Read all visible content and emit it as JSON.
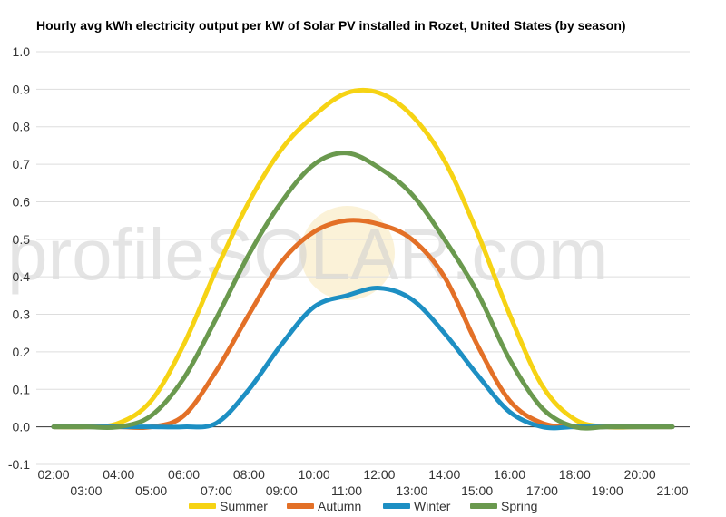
{
  "watermark": {
    "text": "profileSOLAR.com"
  },
  "chart_data": {
    "type": "line",
    "title": "Hourly avg kWh electricity output per kW of Solar PV installed in Rozet, United States (by season)",
    "xlabel": "",
    "ylabel": "",
    "ylim": [
      -0.1,
      1.0
    ],
    "yticks": [
      "-0.1",
      "0.0",
      "0.1",
      "0.2",
      "0.3",
      "0.4",
      "0.5",
      "0.6",
      "0.7",
      "0.8",
      "0.9",
      "1.0"
    ],
    "xticks_upper": [
      "02:00",
      "04:00",
      "06:00",
      "08:00",
      "10:00",
      "12:00",
      "14:00",
      "16:00",
      "18:00",
      "20:00"
    ],
    "xticks_lower": [
      "03:00",
      "05:00",
      "07:00",
      "09:00",
      "11:00",
      "13:00",
      "15:00",
      "17:00",
      "19:00",
      "21:00"
    ],
    "x": [
      "02:00",
      "03:00",
      "04:00",
      "05:00",
      "06:00",
      "07:00",
      "08:00",
      "09:00",
      "10:00",
      "11:00",
      "12:00",
      "13:00",
      "14:00",
      "15:00",
      "16:00",
      "17:00",
      "18:00",
      "19:00",
      "20:00",
      "21:00"
    ],
    "grid": true,
    "legend_position": "bottom",
    "series": [
      {
        "name": "Summer",
        "color": "#f6d314",
        "values": [
          0.0,
          0.0,
          0.01,
          0.07,
          0.22,
          0.42,
          0.6,
          0.74,
          0.83,
          0.89,
          0.89,
          0.83,
          0.71,
          0.52,
          0.3,
          0.11,
          0.02,
          0.0,
          0.0,
          0.0
        ]
      },
      {
        "name": "Autumn",
        "color": "#e37027",
        "values": [
          0.0,
          0.0,
          0.0,
          0.0,
          0.03,
          0.15,
          0.3,
          0.44,
          0.52,
          0.55,
          0.54,
          0.5,
          0.4,
          0.22,
          0.07,
          0.01,
          0.0,
          0.0,
          0.0,
          0.0
        ]
      },
      {
        "name": "Winter",
        "color": "#1d8fc3",
        "values": [
          0.0,
          0.0,
          0.0,
          0.0,
          0.0,
          0.01,
          0.1,
          0.22,
          0.32,
          0.35,
          0.37,
          0.34,
          0.25,
          0.14,
          0.04,
          0.0,
          0.0,
          0.0,
          0.0,
          0.0
        ]
      },
      {
        "name": "Spring",
        "color": "#6a994e",
        "values": [
          0.0,
          0.0,
          0.0,
          0.03,
          0.13,
          0.29,
          0.46,
          0.6,
          0.7,
          0.73,
          0.69,
          0.62,
          0.5,
          0.36,
          0.18,
          0.05,
          0.0,
          0.0,
          0.0,
          0.0
        ]
      }
    ]
  }
}
